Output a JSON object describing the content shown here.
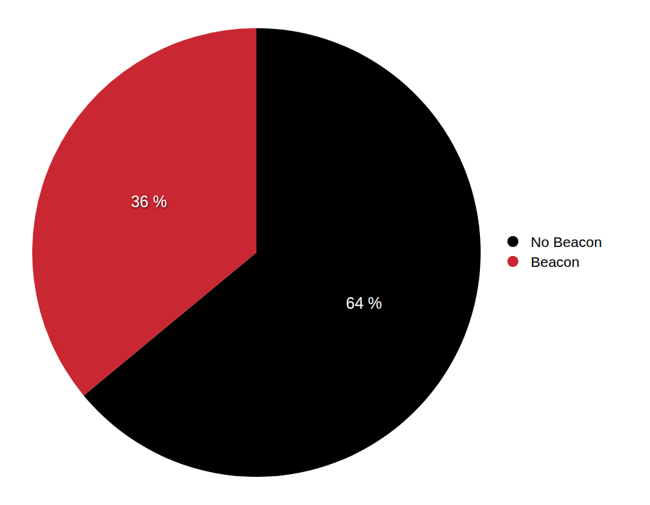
{
  "chart_data": {
    "type": "pie",
    "categories": [
      "No Beacon",
      "Beacon"
    ],
    "values": [
      64,
      36
    ],
    "value_labels": [
      "64 %",
      "36 %"
    ],
    "colors": [
      "#000000",
      "#c92731"
    ],
    "data_labels": true,
    "legend": "right"
  }
}
